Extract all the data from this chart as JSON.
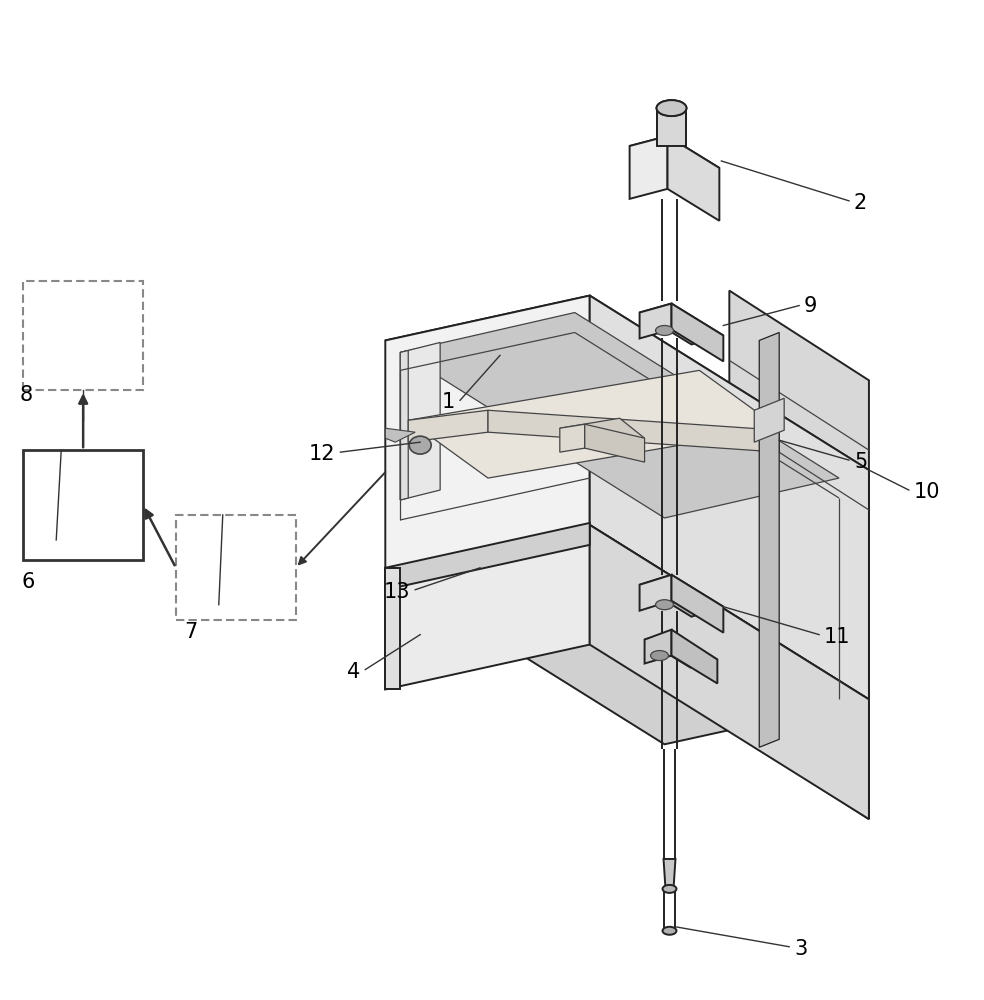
{
  "bg_color": "#ffffff",
  "lc": "#555555",
  "lc_dark": "#444444",
  "lc_black": "#222222",
  "fill_white": "#ffffff",
  "fill_light": "#f0f0f0",
  "fill_mid_light": "#e0e0e0",
  "fill_mid": "#d0d0d0",
  "fill_dark": "#b8b8b8",
  "fill_very_dark": "#999999",
  "fill_inner": "#c8c8c8",
  "fill_tray": "#e8e8e8",
  "lw_main": 1.4,
  "lw_inner": 0.9,
  "fontsize": 15
}
